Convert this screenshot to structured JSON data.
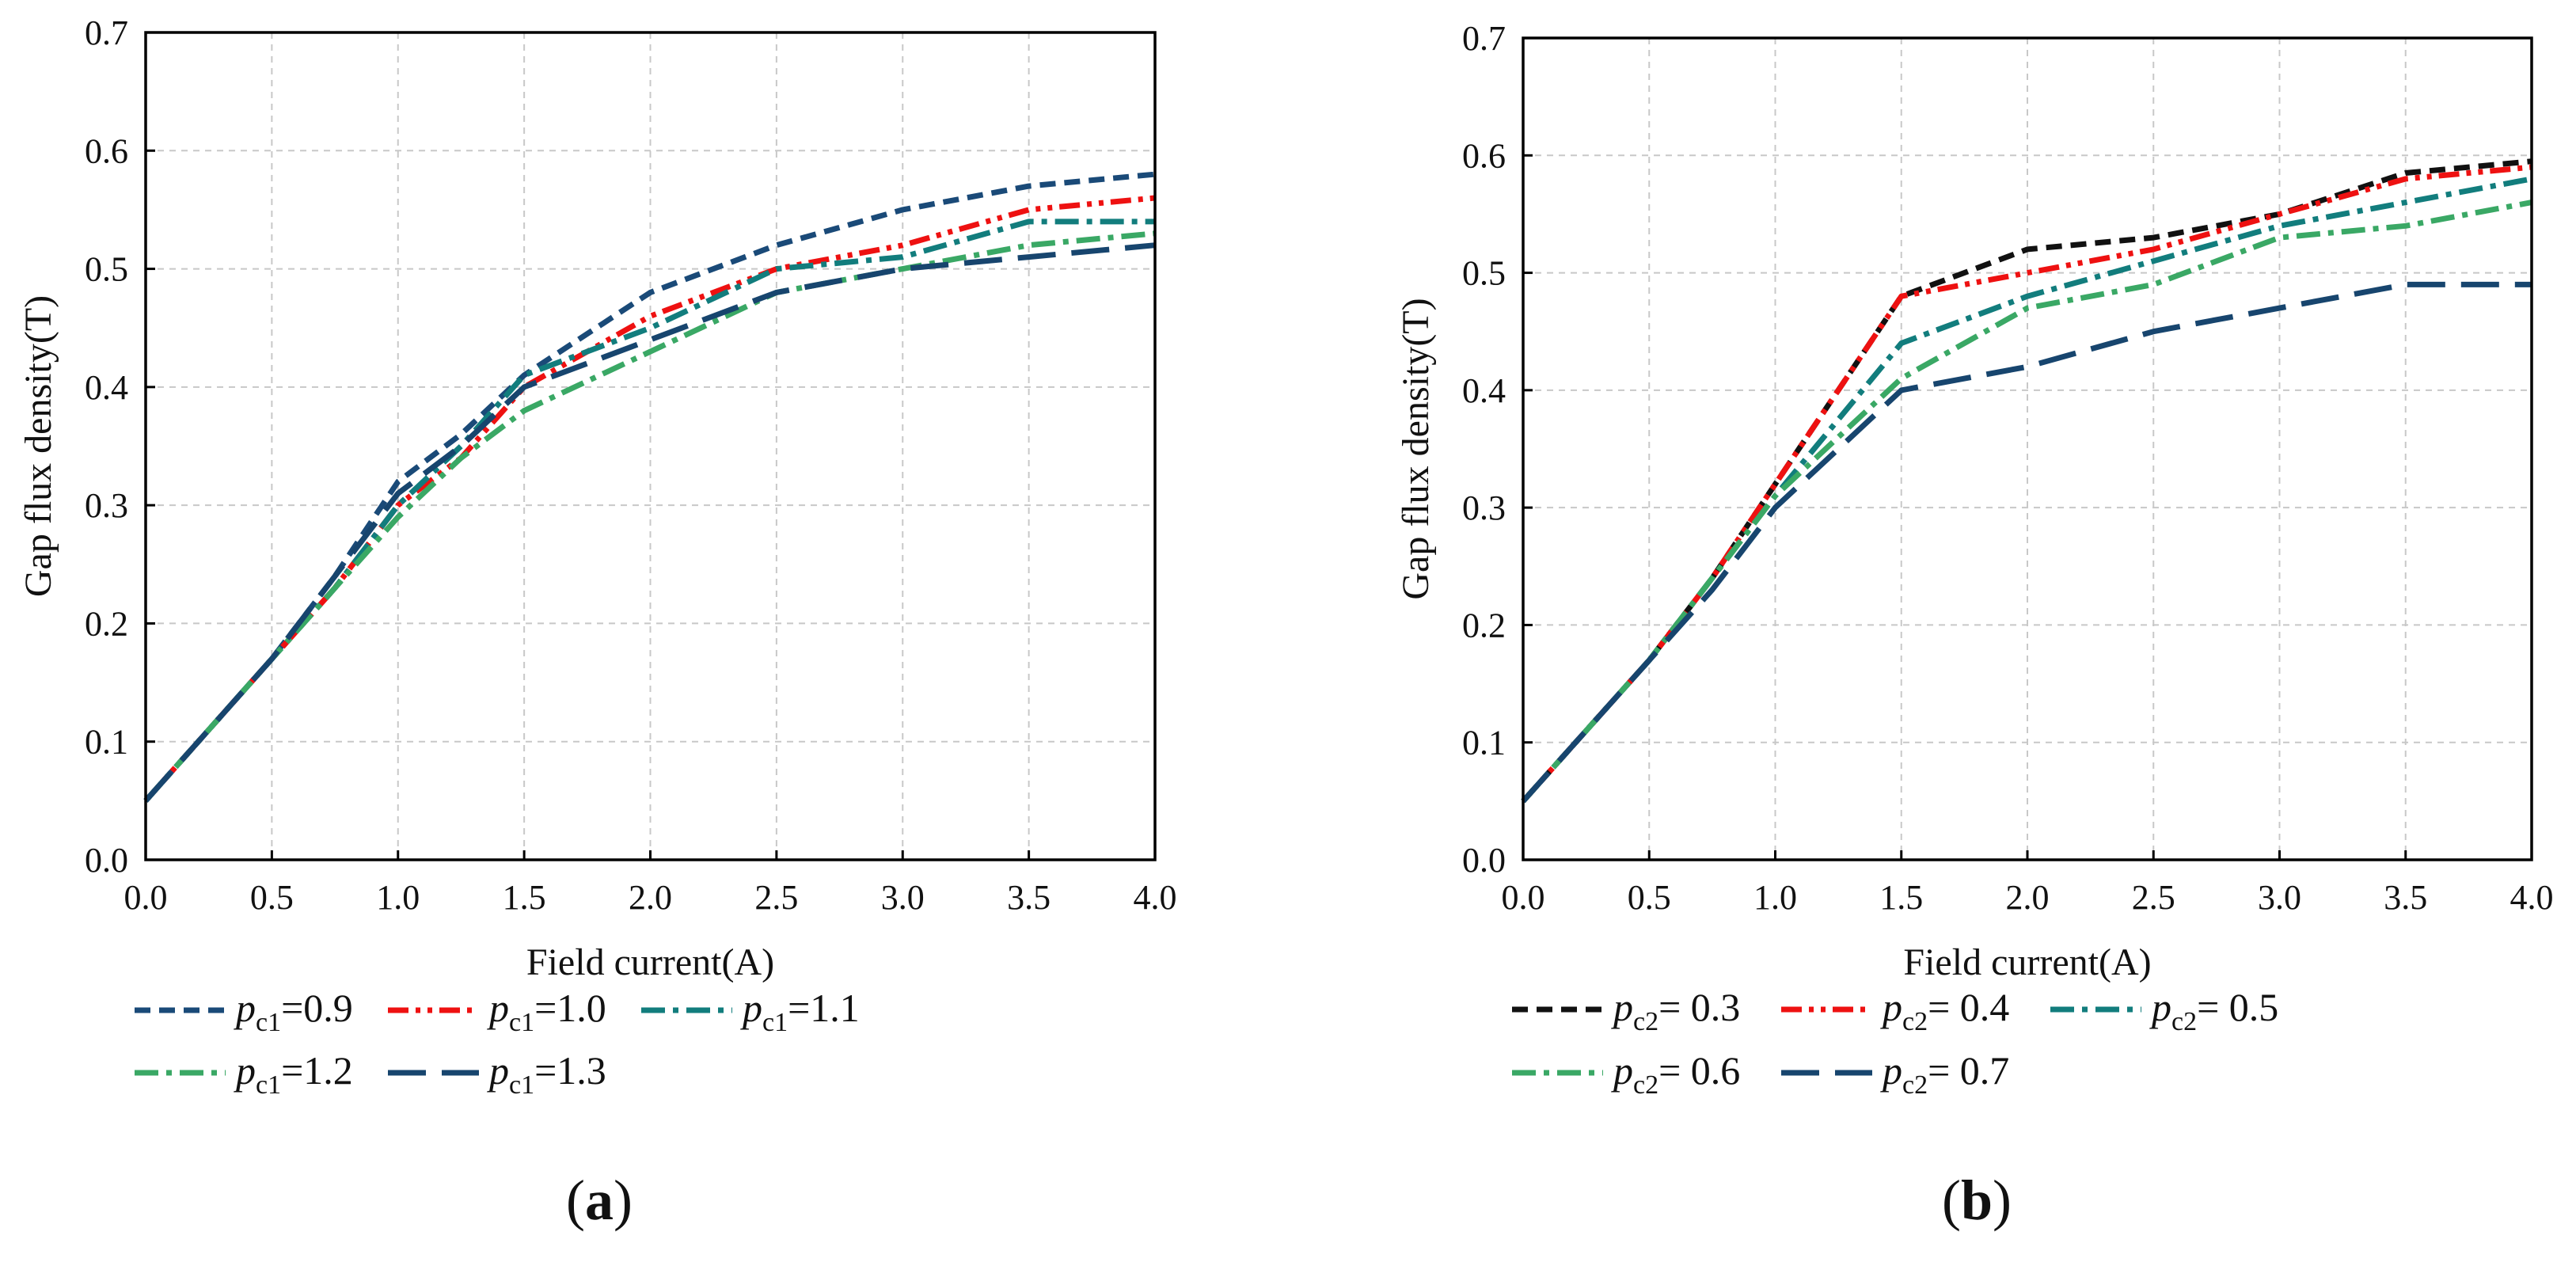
{
  "chart_data": [
    {
      "type": "line",
      "panel_label": "a",
      "xlabel": "Field current(A)",
      "ylabel": "Gap flux density(T)",
      "xlim": [
        0,
        4.0
      ],
      "ylim": [
        0,
        0.7
      ],
      "xticks": [
        "0.0",
        "0.5",
        "1.0",
        "1.5",
        "2.0",
        "2.5",
        "3.0",
        "3.5",
        "4.0"
      ],
      "yticks": [
        "0.0",
        "0.1",
        "0.2",
        "0.3",
        "0.4",
        "0.5",
        "0.6",
        "0.7"
      ],
      "grid": true,
      "legend_position": "below",
      "series": [
        {
          "symbol": "p",
          "subscript": "c1",
          "label_value": "=0.9",
          "color": "#1a4a78",
          "dash": "short-dash",
          "x": [
            0,
            0.25,
            0.5,
            0.75,
            1.0,
            1.25,
            1.5,
            2.0,
            2.5,
            3.0,
            3.5,
            4.0
          ],
          "y": [
            0.05,
            0.11,
            0.17,
            0.24,
            0.32,
            0.36,
            0.41,
            0.48,
            0.52,
            0.55,
            0.57,
            0.58
          ]
        },
        {
          "symbol": "p",
          "subscript": "c1",
          "label_value": "=1.0",
          "color": "#ee1111",
          "dash": "dash-dot-dot",
          "x": [
            0,
            0.25,
            0.5,
            0.75,
            1.0,
            1.25,
            1.5,
            2.0,
            2.5,
            3.0,
            3.5,
            4.0
          ],
          "y": [
            0.05,
            0.11,
            0.17,
            0.23,
            0.3,
            0.34,
            0.4,
            0.46,
            0.5,
            0.52,
            0.55,
            0.56
          ]
        },
        {
          "symbol": "p",
          "subscript": "c1",
          "label_value": "=1.1",
          "color": "#127d7d",
          "dash": "dash-dot",
          "x": [
            0,
            0.25,
            0.5,
            0.75,
            1.0,
            1.25,
            1.5,
            2.0,
            2.5,
            3.0,
            3.5,
            4.0
          ],
          "y": [
            0.05,
            0.11,
            0.17,
            0.23,
            0.3,
            0.35,
            0.41,
            0.45,
            0.5,
            0.51,
            0.54,
            0.54
          ]
        },
        {
          "symbol": "p",
          "subscript": "c1",
          "label_value": "=1.2",
          "color": "#3aa865",
          "dash": "dash-dot",
          "x": [
            0,
            0.25,
            0.5,
            0.75,
            1.0,
            1.25,
            1.5,
            2.0,
            2.5,
            3.0,
            3.5,
            4.0
          ],
          "y": [
            0.05,
            0.11,
            0.17,
            0.23,
            0.29,
            0.34,
            0.38,
            0.43,
            0.48,
            0.5,
            0.52,
            0.53
          ]
        },
        {
          "symbol": "p",
          "subscript": "c1",
          "label_value": "=1.3",
          "color": "#17456e",
          "dash": "long-dash",
          "x": [
            0,
            0.25,
            0.5,
            0.75,
            1.0,
            1.25,
            1.5,
            2.0,
            2.5,
            3.0,
            3.5,
            4.0
          ],
          "y": [
            0.05,
            0.11,
            0.17,
            0.24,
            0.31,
            0.35,
            0.4,
            0.44,
            0.48,
            0.5,
            0.51,
            0.52
          ]
        }
      ]
    },
    {
      "type": "line",
      "panel_label": "b",
      "xlabel": "Field current(A)",
      "ylabel": "Gap flux density(T)",
      "xlim": [
        0,
        4.0
      ],
      "ylim": [
        0,
        0.7
      ],
      "xticks": [
        "0.0",
        "0.5",
        "1.0",
        "1.5",
        "2.0",
        "2.5",
        "3.0",
        "3.5",
        "4.0"
      ],
      "yticks": [
        "0.0",
        "0.1",
        "0.2",
        "0.3",
        "0.4",
        "0.5",
        "0.6",
        "0.7"
      ],
      "grid": true,
      "legend_position": "below",
      "series": [
        {
          "symbol": "p",
          "subscript": "c2",
          "label_value": "= 0.3",
          "color": "#111111",
          "dash": "short-dash",
          "x": [
            0,
            0.25,
            0.5,
            0.75,
            1.0,
            1.5,
            2.0,
            2.5,
            3.0,
            3.5,
            4.0
          ],
          "y": [
            0.05,
            0.11,
            0.17,
            0.24,
            0.32,
            0.48,
            0.52,
            0.53,
            0.55,
            0.585,
            0.595
          ]
        },
        {
          "symbol": "p",
          "subscript": "c2",
          "label_value": "= 0.4",
          "color": "#ee1111",
          "dash": "dash-dot-dot",
          "x": [
            0,
            0.25,
            0.5,
            0.75,
            1.0,
            1.5,
            2.0,
            2.5,
            3.0,
            3.5,
            4.0
          ],
          "y": [
            0.05,
            0.11,
            0.17,
            0.24,
            0.32,
            0.48,
            0.5,
            0.52,
            0.55,
            0.58,
            0.59
          ]
        },
        {
          "symbol": "p",
          "subscript": "c2",
          "label_value": "= 0.5",
          "color": "#127d7d",
          "dash": "dash-dot",
          "x": [
            0,
            0.25,
            0.5,
            0.75,
            1.0,
            1.5,
            2.0,
            2.5,
            3.0,
            3.5,
            4.0
          ],
          "y": [
            0.05,
            0.11,
            0.17,
            0.24,
            0.31,
            0.44,
            0.48,
            0.51,
            0.54,
            0.56,
            0.58
          ]
        },
        {
          "symbol": "p",
          "subscript": "c2",
          "label_value": "= 0.6",
          "color": "#3aa865",
          "dash": "dash-dot",
          "x": [
            0,
            0.25,
            0.5,
            0.75,
            1.0,
            1.5,
            2.0,
            2.5,
            3.0,
            3.5,
            4.0
          ],
          "y": [
            0.05,
            0.11,
            0.17,
            0.24,
            0.31,
            0.41,
            0.47,
            0.49,
            0.53,
            0.54,
            0.56
          ]
        },
        {
          "symbol": "p",
          "subscript": "c2",
          "label_value": "= 0.7",
          "color": "#17456e",
          "dash": "long-dash",
          "x": [
            0,
            0.25,
            0.5,
            0.75,
            1.0,
            1.5,
            2.0,
            2.5,
            3.0,
            3.5,
            4.0
          ],
          "y": [
            0.05,
            0.11,
            0.17,
            0.23,
            0.3,
            0.4,
            0.42,
            0.45,
            0.47,
            0.49,
            0.49
          ]
        }
      ]
    }
  ]
}
